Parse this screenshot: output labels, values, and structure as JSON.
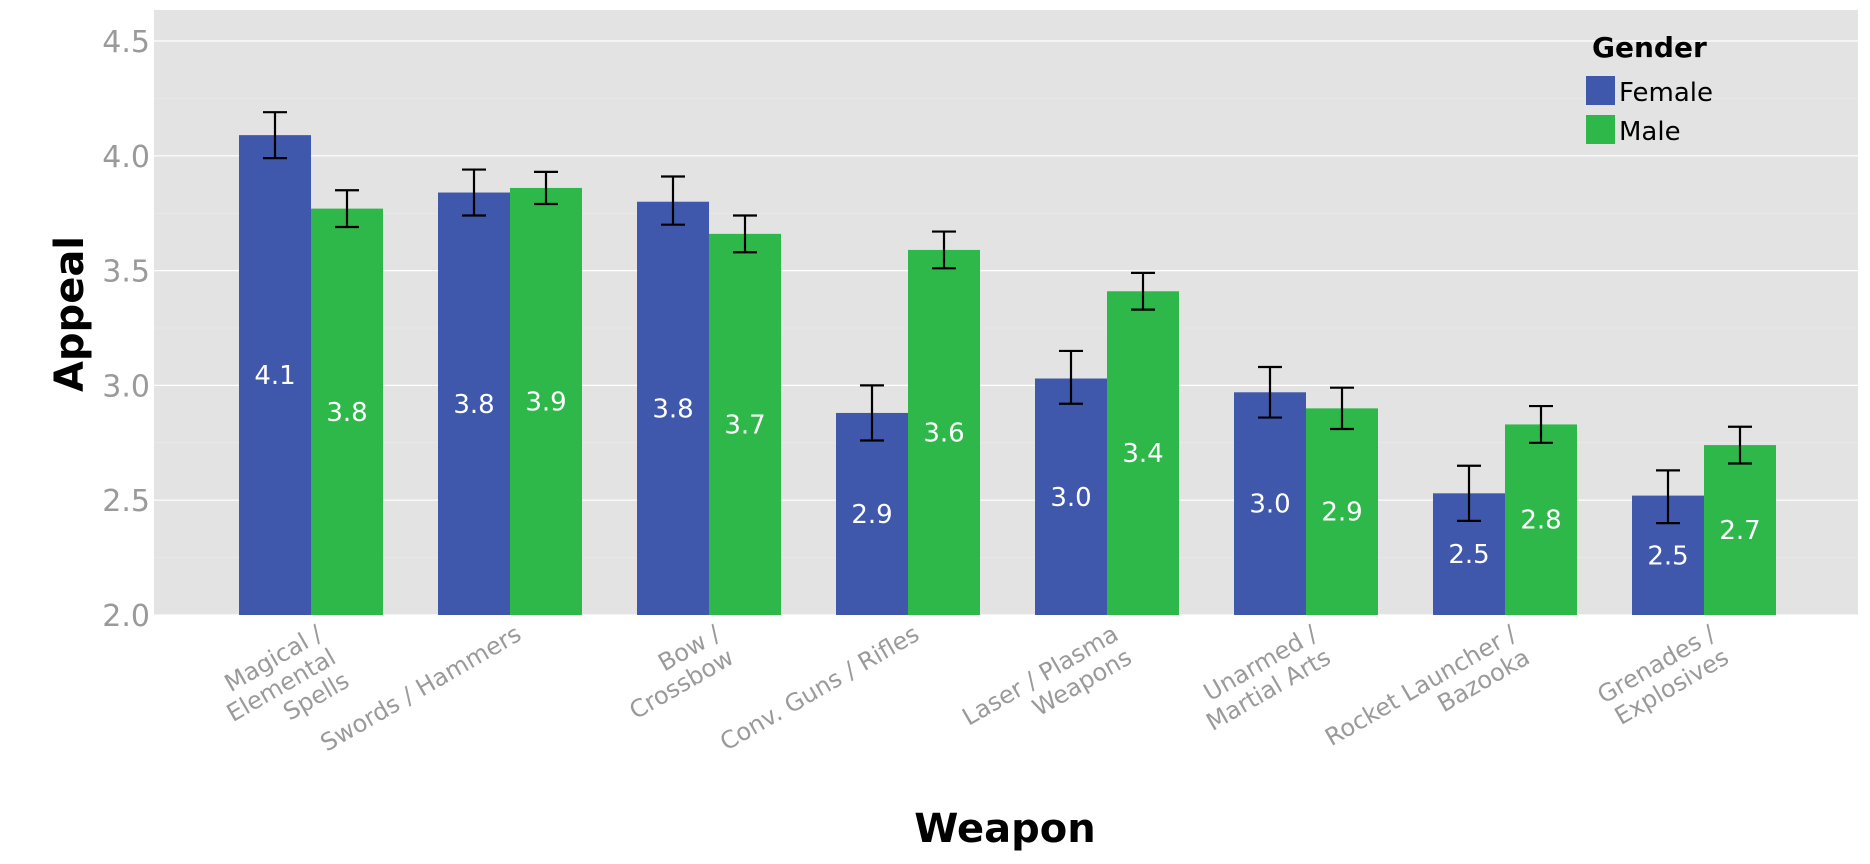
{
  "chart_data": {
    "type": "bar",
    "title": "",
    "xlabel": "Weapon",
    "ylabel": "Appeal",
    "ylim": [
      2.0,
      4.63
    ],
    "yticks": [
      "2.0",
      "2.5",
      "3.0",
      "3.5",
      "4.0",
      "4.5"
    ],
    "grid": true,
    "legend": {
      "title": "Gender",
      "placement": "top-right"
    },
    "categories": [
      "Magical /\nElemental\nSpells",
      "Swords / Hammers",
      "Bow /\nCrossbow",
      "Conv. Guns / Rifles",
      "Laser / Plasma\nWeapons",
      "Unarmed /\nMartial Arts",
      "Rocket Launcher /\nBazooka",
      "Grenades /\nExplosives"
    ],
    "series": [
      {
        "name": "Female",
        "color": "#3f58ac",
        "values": [
          4.09,
          3.84,
          3.8,
          2.88,
          3.03,
          2.97,
          2.53,
          2.52
        ],
        "labels": [
          "4.1",
          "3.8",
          "3.8",
          "2.9",
          "3.0",
          "3.0",
          "2.5",
          "2.5"
        ],
        "error_low": [
          3.99,
          3.74,
          3.7,
          2.76,
          2.92,
          2.86,
          2.41,
          2.4
        ],
        "error_high": [
          4.19,
          3.94,
          3.91,
          3.0,
          3.15,
          3.08,
          2.65,
          2.63
        ]
      },
      {
        "name": "Male",
        "color": "#2eb84a",
        "values": [
          3.77,
          3.86,
          3.66,
          3.59,
          3.41,
          2.9,
          2.83,
          2.74
        ],
        "labels": [
          "3.8",
          "3.9",
          "3.7",
          "3.6",
          "3.4",
          "2.9",
          "2.8",
          "2.7"
        ],
        "error_low": [
          3.69,
          3.79,
          3.58,
          3.51,
          3.33,
          2.81,
          2.75,
          2.66
        ],
        "error_high": [
          3.85,
          3.93,
          3.74,
          3.67,
          3.49,
          2.99,
          2.91,
          2.82
        ]
      }
    ],
    "background": "#e3e3e3"
  }
}
